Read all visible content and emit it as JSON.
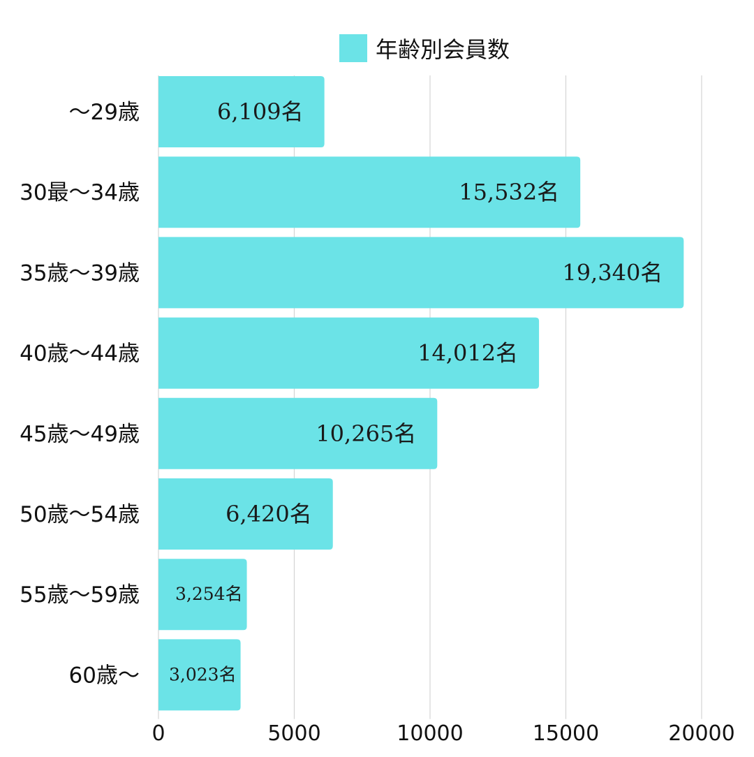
{
  "chart_data": {
    "type": "bar",
    "orientation": "horizontal",
    "categories": [
      "～29歳",
      "30最～34歳",
      "35歳～39歳",
      "40歳～44歳",
      "45歳～49歳",
      "50歳～54歳",
      "55歳～59歳",
      "60歳～"
    ],
    "series": [
      {
        "name": "年齢別会員数",
        "values": [
          6109,
          15532,
          19340,
          14012,
          10265,
          6420,
          3254,
          3023
        ],
        "color": "#6be3e7"
      }
    ],
    "data_labels": [
      "6,109名",
      "15,532名",
      "19,340名",
      "14,012名",
      "10,265名",
      "6,420名",
      "3,254名",
      "3,023名"
    ],
    "xlim": [
      0,
      20000
    ],
    "xticks": [
      0,
      5000,
      10000,
      15000,
      20000
    ],
    "xtick_labels": [
      "0",
      "5000",
      "10000",
      "15000",
      "20000"
    ],
    "grid": "vertical",
    "legend": {
      "position": "top-center",
      "label": "年齢別会員数"
    }
  }
}
